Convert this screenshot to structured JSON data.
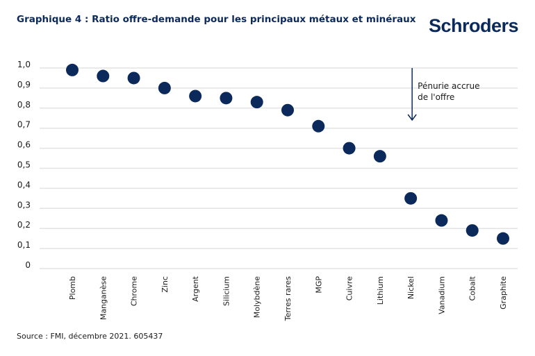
{
  "title": "Graphique 4 : Ratio offre-demande pour les principaux métaux et minéraux",
  "logo": "Schroders",
  "source": "Source : FMI, décembre 2021. 605437",
  "colors": {
    "marker": "#0b2a5b",
    "grid": "#e3e3e3",
    "title": "#0b2a5b"
  },
  "chart_data": {
    "type": "scatter",
    "title": "Graphique 4 : Ratio offre-demande pour les principaux métaux et minéraux",
    "xlabel": "",
    "ylabel": "",
    "ylim": [
      0,
      1.0
    ],
    "grid": true,
    "yticks": [
      "0",
      "0,1",
      "0,2",
      "0,3",
      "0,4",
      "0,5",
      "0,6",
      "0,7",
      "0,8",
      "0,9",
      "1,0"
    ],
    "categories": [
      "Plomb",
      "Manganèse",
      "Chrome",
      "Zinc",
      "Argent",
      "Silicium",
      "Molybdène",
      "Terres rares",
      "MGP",
      "Cuivre",
      "Lithium",
      "Nickel",
      "Vanadium",
      "Cobalt",
      "Graphite"
    ],
    "values": [
      0.99,
      0.96,
      0.95,
      0.9,
      0.86,
      0.85,
      0.83,
      0.79,
      0.71,
      0.6,
      0.56,
      0.35,
      0.24,
      0.19,
      0.15
    ],
    "annotation": {
      "lines": [
        "Pénurie accrue",
        "de l'offre"
      ],
      "arrow": "down",
      "near_category": "Nickel"
    }
  }
}
